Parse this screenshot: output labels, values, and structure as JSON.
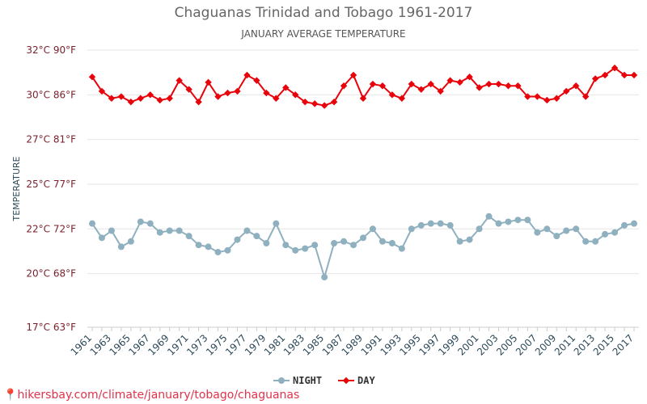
{
  "header": {
    "title": "Chaguanas Trinidad and Tobago 1961-2017",
    "subtitle": "JANUARY AVERAGE TEMPERATURE"
  },
  "source": {
    "pin_icon": "location-pin-icon",
    "text": "hikersbay.com/climate/january/tobago/chaguanas"
  },
  "chart_data": {
    "type": "line",
    "ylabel": "TEMPERATURE",
    "ylim": [
      17,
      32
    ],
    "yticks": [
      {
        "value": 17,
        "label": "17°C 63°F"
      },
      {
        "value": 20,
        "label": "20°C 68°F"
      },
      {
        "value": 22.5,
        "label": "22°C 72°F"
      },
      {
        "value": 25,
        "label": "25°C 77°F"
      },
      {
        "value": 27.5,
        "label": "27°C 81°F"
      },
      {
        "value": 30,
        "label": "30°C 86°F"
      },
      {
        "value": 32.5,
        "label": "32°C 90°F"
      }
    ],
    "xtick_labels": [
      "1961",
      "1963",
      "1965",
      "1967",
      "1969",
      "1971",
      "1973",
      "1975",
      "1977",
      "1979",
      "1981",
      "1983",
      "1985",
      "1987",
      "1989",
      "1991",
      "1993",
      "1995",
      "1997",
      "1999",
      "2001",
      "2003",
      "2005",
      "2007",
      "2009",
      "2011",
      "2013",
      "2015",
      "2017"
    ],
    "x": [
      1961,
      1962,
      1963,
      1964,
      1965,
      1966,
      1967,
      1968,
      1969,
      1970,
      1971,
      1972,
      1973,
      1974,
      1975,
      1976,
      1977,
      1978,
      1979,
      1980,
      1981,
      1982,
      1983,
      1984,
      1985,
      1986,
      1987,
      1988,
      1989,
      1990,
      1991,
      1992,
      1993,
      1994,
      1995,
      1996,
      1997,
      1998,
      1999,
      2000,
      2001,
      2002,
      2003,
      2004,
      2005,
      2006,
      2007,
      2008,
      2009,
      2010,
      2011,
      2012,
      2013,
      2014,
      2015,
      2016,
      2017
    ],
    "grid": true,
    "legend_position": "bottom",
    "series": [
      {
        "name": "NIGHT",
        "color": "#8fb0bf",
        "marker": "circle",
        "values": [
          22.8,
          22.0,
          22.4,
          21.5,
          21.8,
          22.9,
          22.8,
          22.3,
          22.4,
          22.4,
          22.1,
          21.6,
          21.5,
          21.2,
          21.3,
          21.9,
          22.4,
          22.1,
          21.7,
          22.8,
          21.6,
          21.3,
          21.4,
          21.6,
          19.8,
          21.7,
          21.8,
          21.6,
          22.0,
          22.5,
          21.8,
          21.7,
          21.4,
          22.5,
          22.7,
          22.8,
          22.8,
          22.7,
          21.8,
          21.9,
          22.5,
          23.2,
          22.8,
          22.9,
          23.0,
          23.0,
          22.3,
          22.5,
          22.1,
          22.4,
          22.5,
          21.8,
          21.8,
          22.2,
          22.3,
          22.7,
          22.8
        ]
      },
      {
        "name": "DAY",
        "color": "#e8020a",
        "marker": "diamond",
        "values": [
          31.0,
          30.2,
          29.8,
          29.9,
          29.6,
          29.8,
          30.0,
          29.7,
          29.8,
          30.8,
          30.3,
          29.6,
          30.7,
          29.9,
          30.1,
          30.2,
          31.1,
          30.8,
          30.1,
          29.8,
          30.4,
          30.0,
          29.6,
          29.5,
          29.4,
          29.6,
          30.5,
          31.1,
          29.8,
          30.6,
          30.5,
          30.0,
          29.8,
          30.6,
          30.3,
          30.6,
          30.2,
          30.8,
          30.7,
          31.0,
          30.4,
          30.6,
          30.6,
          30.5,
          30.5,
          29.9,
          29.9,
          29.7,
          29.8,
          30.2,
          30.5,
          29.9,
          30.9,
          31.1,
          31.5,
          31.1,
          31.1
        ]
      }
    ]
  }
}
